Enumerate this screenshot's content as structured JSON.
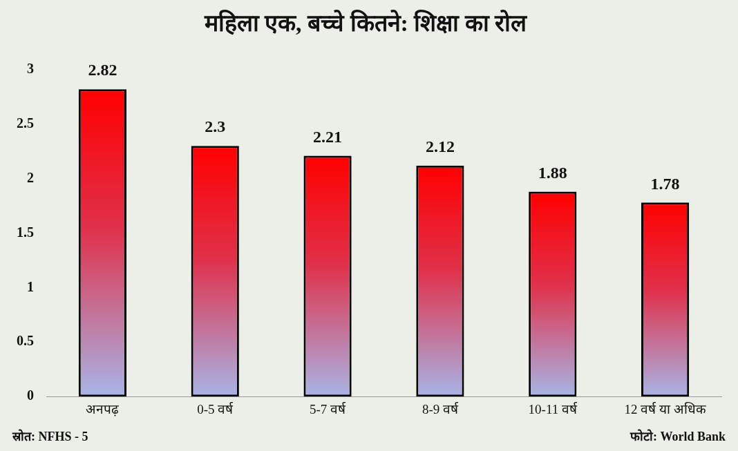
{
  "chart_data": {
    "type": "bar",
    "title": "महिला एक, बच्चे कितने: शिक्षा का रोल",
    "categories": [
      "अनपढ़",
      "0-5 वर्ष",
      "5-7 वर्ष",
      "8-9 वर्ष",
      "10-11 वर्ष",
      "12 वर्ष या अधिक"
    ],
    "values": [
      2.82,
      2.3,
      2.21,
      2.12,
      1.88,
      1.78
    ],
    "color": "#ff0000",
    "ylim": [
      0,
      3
    ],
    "yticks": [
      0,
      0.5,
      1,
      1.5,
      2,
      2.5,
      3
    ],
    "grid": false,
    "data_labels": true,
    "annotations": [
      "स्रोत: NFHS - 5",
      "फोटो: World Bank"
    ]
  }
}
